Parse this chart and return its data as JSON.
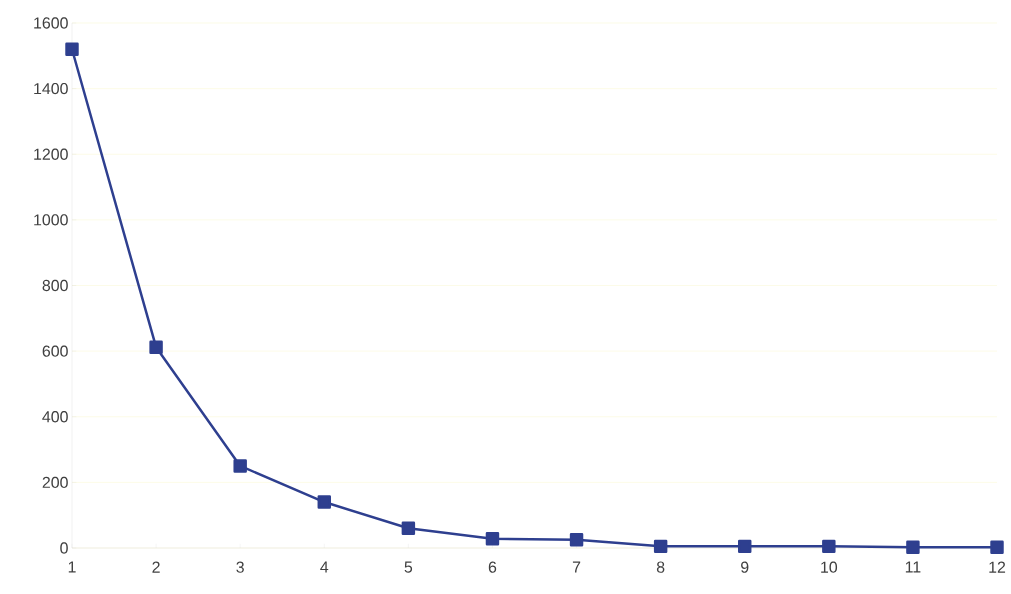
{
  "chart_data": {
    "type": "line",
    "categories": [
      "1",
      "2",
      "3",
      "4",
      "5",
      "6",
      "7",
      "8",
      "9",
      "10",
      "11",
      "12"
    ],
    "series": [
      {
        "color": "#2e3f8f",
        "values": [
          1520,
          612,
          250,
          140,
          60,
          28,
          25,
          5,
          5,
          5,
          2,
          2
        ]
      }
    ],
    "ylim": [
      0,
      1600
    ],
    "yticks": [
      0,
      200,
      400,
      600,
      800,
      1000,
      1200,
      1400,
      1600
    ],
    "grid": "y",
    "marker": "square",
    "line_style": "solid"
  }
}
